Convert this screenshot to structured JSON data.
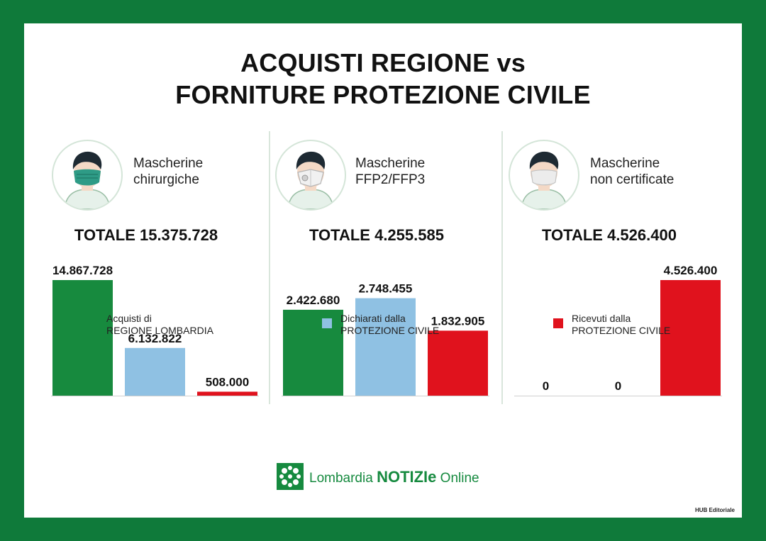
{
  "title": {
    "line1": "ACQUISTI REGIONE vs",
    "line2": "FORNITURE PROTEZIONE CIVILE"
  },
  "colors": {
    "regione": "#178a3e",
    "dichiarati": "#8fc1e3",
    "ricevuti": "#e0121d",
    "frame": "#0f7a3a"
  },
  "panels": [
    {
      "label_line1": "Mascherine",
      "label_line2": "chirurgiche",
      "totale": "TOTALE 15.375.728",
      "icon": "surgical-mask-person-icon"
    },
    {
      "label_line1": "Mascherine",
      "label_line2": "FFP2/FFP3",
      "totale": "TOTALE 4.255.585",
      "icon": "ffp2-mask-person-icon"
    },
    {
      "label_line1": "Mascherine",
      "label_line2": "non certificate",
      "totale": "TOTALE 4.526.400",
      "icon": "uncertified-mask-person-icon"
    }
  ],
  "legend": [
    {
      "line1": "Acquisti di",
      "line2": "REGIONE LOMBARDIA"
    },
    {
      "line1": "Dichiarati dalla",
      "line2": "PROTEZIONE CIVILE"
    },
    {
      "line1": "Ricevuti dalla",
      "line2": "PROTEZIONE CIVILE"
    }
  ],
  "footer": {
    "logo_pre": "Lombardia ",
    "logo_bold": "NOTIZIe",
    "logo_post": " Online",
    "credit": "HUB Editoriale"
  },
  "chart_data": [
    {
      "type": "bar",
      "categories": [
        "Acquisti di REGIONE LOMBARDIA",
        "Dichiarati dalla PROTEZIONE CIVILE",
        "Ricevuti dalla PROTEZIONE CIVILE"
      ],
      "values": [
        14867728,
        6132822,
        508000
      ],
      "labels": [
        "14.867.728",
        "6.132.822",
        "508.000"
      ],
      "title": "Mascherine chirurgiche",
      "subtitle": "TOTALE 15.375.728",
      "ylim": [
        0,
        14867728
      ]
    },
    {
      "type": "bar",
      "categories": [
        "Acquisti di REGIONE LOMBARDIA",
        "Dichiarati dalla PROTEZIONE CIVILE",
        "Ricevuti dalla PROTEZIONE CIVILE"
      ],
      "values": [
        2422680,
        2748455,
        1832905
      ],
      "labels": [
        "2.422.680",
        "2.748.455",
        "1.832.905"
      ],
      "title": "Mascherine FFP2/FFP3",
      "subtitle": "TOTALE 4.255.585",
      "ylim": [
        0,
        3260000
      ]
    },
    {
      "type": "bar",
      "categories": [
        "Acquisti di REGIONE LOMBARDIA",
        "Dichiarati dalla PROTEZIONE CIVILE",
        "Ricevuti dalla PROTEZIONE CIVILE"
      ],
      "values": [
        0,
        0,
        4526400
      ],
      "labels": [
        "0",
        "0",
        "4.526.400"
      ],
      "title": "Mascherine non certificate",
      "subtitle": "TOTALE 4.526.400",
      "ylim": [
        0,
        4526400
      ]
    }
  ]
}
